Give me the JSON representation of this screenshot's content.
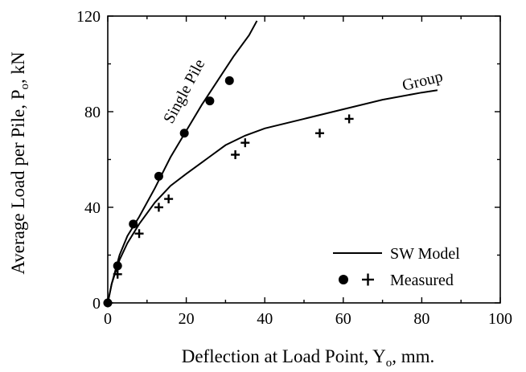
{
  "chart_data": {
    "type": "scatter",
    "title": "",
    "xlabel": "Deflection at Load Point, Y",
    "xlabel_sub": "o",
    "xlabel_tail": ", mm.",
    "ylabel": "Average Load per Pile, P",
    "ylabel_sub": "o",
    "ylabel_tail": ", kN",
    "xlim": [
      0,
      100
    ],
    "ylim": [
      0,
      120
    ],
    "xticks": [
      0,
      20,
      40,
      60,
      80,
      100
    ],
    "yticks": [
      0,
      40,
      80,
      120
    ],
    "grid": false,
    "legend_position": "bottom-right",
    "series": [
      {
        "label": "Single Pile",
        "kind": "line",
        "x": [
          0,
          1,
          2,
          3,
          5,
          8,
          12,
          16,
          20,
          24,
          28,
          32,
          36,
          38
        ],
        "y": [
          0,
          8,
          14,
          20,
          28,
          36,
          48,
          61,
          72,
          83,
          93,
          103,
          112,
          118
        ]
      },
      {
        "label": "Group",
        "kind": "line",
        "x": [
          0,
          1,
          2,
          3,
          5,
          8,
          12,
          16,
          20,
          25,
          30,
          35,
          40,
          50,
          60,
          70,
          80,
          84
        ],
        "y": [
          0,
          8,
          13,
          18,
          25,
          33,
          42,
          49,
          54,
          60,
          66,
          70,
          73,
          77,
          81,
          85,
          88,
          89
        ]
      },
      {
        "label": "Single Pile measured",
        "kind": "dot",
        "x": [
          0,
          2.5,
          6.5,
          13,
          19.5,
          26,
          31
        ],
        "y": [
          0,
          15.5,
          33,
          53,
          71,
          84.5,
          93
        ]
      },
      {
        "label": "Group measured",
        "kind": "plus",
        "x": [
          0,
          2.5,
          8,
          13,
          15.5,
          32.5,
          35,
          54,
          61.5
        ],
        "y": [
          0,
          12,
          29,
          40,
          43.5,
          62,
          67,
          71,
          77
        ]
      }
    ],
    "legend": {
      "line_label": "SW Model",
      "markers_label": "Measured"
    }
  }
}
